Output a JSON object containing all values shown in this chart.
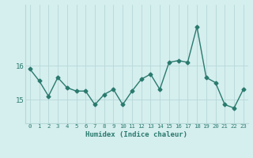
{
  "x": [
    0,
    1,
    2,
    3,
    4,
    5,
    6,
    7,
    8,
    9,
    10,
    11,
    12,
    13,
    14,
    15,
    16,
    17,
    18,
    19,
    20,
    21,
    22,
    23
  ],
  "y": [
    15.9,
    15.55,
    15.1,
    15.65,
    15.35,
    15.25,
    15.25,
    14.85,
    15.15,
    15.3,
    14.85,
    15.25,
    15.6,
    15.75,
    15.3,
    16.1,
    16.15,
    16.1,
    17.15,
    15.65,
    15.5,
    14.85,
    14.75,
    15.3
  ],
  "line_color": "#2a7a6e",
  "marker": "D",
  "marker_size": 2.5,
  "bg_color": "#d5eeee",
  "grid_color": "#b8d8d8",
  "tick_color": "#2a7a6e",
  "xlabel": "Humidex (Indice chaleur)",
  "xlabel_color": "#2a7a6e",
  "yticks": [
    15,
    16
  ],
  "ylim": [
    14.3,
    17.8
  ],
  "xlim": [
    -0.5,
    23.5
  ],
  "title": "",
  "line_width": 1.0
}
